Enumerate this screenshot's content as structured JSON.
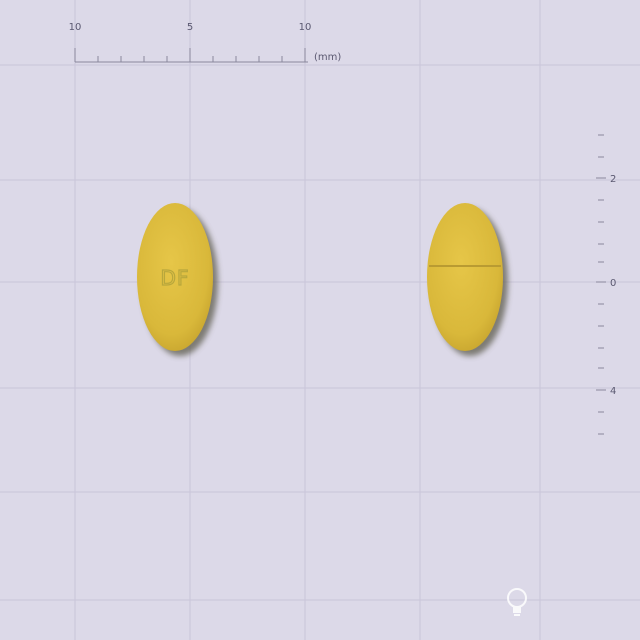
{
  "ruler_top": {
    "labels": [
      "10",
      "5",
      "10"
    ],
    "unit": "(mm)"
  },
  "ruler_right": {
    "labels": [
      "2",
      "0",
      "4"
    ]
  },
  "pills": {
    "front": {
      "imprint": "DF"
    },
    "back": {
      "score_line": true
    }
  },
  "colors": {
    "background": "#dcd9e8",
    "grid": "#c9c5d9",
    "pill": "#d9b83a",
    "pill_shadow": "#6b6a5a"
  },
  "icons": {
    "watermark": "lightbulb-logo-icon"
  }
}
